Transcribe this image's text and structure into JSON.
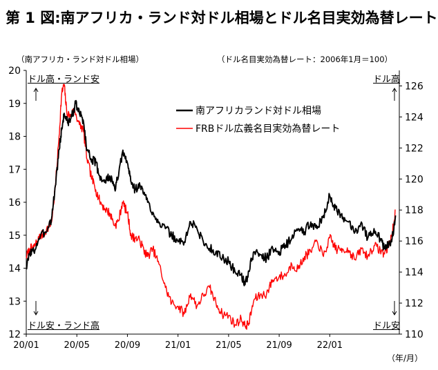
{
  "title": "第 1 図:南アフリカ・ランド対ドル相場とドル名目実効為替レート",
  "left_axis_title": "（南アフリカ・ランド対ドル相場）",
  "right_axis_title": "（ドル名目実効為替レート：2006年1月＝100）",
  "corner_top_left": "ドル高・ランド安",
  "corner_top_right": "ドル高",
  "corner_bottom_left": "ドル安・ランド高",
  "corner_bottom_right": "ドル安",
  "x_unit": "（年/月）",
  "colors": {
    "zar": "#000000",
    "usd": "#ff0000"
  },
  "chart_data": {
    "type": "line",
    "x_tick_labels": [
      "20/01",
      "20/05",
      "20/09",
      "21/01",
      "21/05",
      "21/09",
      "22/01"
    ],
    "x_ticks_month_index": [
      0,
      4,
      8,
      12,
      16,
      20,
      24
    ],
    "x_range_months": [
      0,
      29.5
    ],
    "y_left": {
      "range": [
        12,
        20
      ],
      "ticks": [
        12,
        13,
        14,
        15,
        16,
        17,
        18,
        19,
        20
      ]
    },
    "y_right": {
      "range": [
        110,
        127
      ],
      "ticks": [
        110,
        112,
        114,
        116,
        118,
        120,
        122,
        124,
        126
      ]
    },
    "grid": false,
    "legend_position": "upper-center",
    "series": [
      {
        "name": "南アフリカランド対ドル相場",
        "axis": "left",
        "x_month": [
          0,
          0.3,
          0.6,
          1,
          1.5,
          2,
          2.3,
          2.6,
          2.8,
          3.0,
          3.3,
          3.6,
          3.9,
          4.2,
          4.5,
          4.8,
          5.2,
          5.5,
          5.8,
          6.2,
          6.6,
          7,
          7.3,
          7.6,
          8,
          8.3,
          8.6,
          9,
          9.3,
          9.6,
          10,
          10.5,
          11,
          11.5,
          12,
          12.5,
          13,
          13.5,
          14,
          14.5,
          15,
          15.5,
          16,
          16.5,
          17,
          17.3,
          17.6,
          18,
          18.5,
          19,
          19.5,
          20,
          20.5,
          21,
          21.5,
          22,
          22.5,
          23,
          23.5,
          24,
          24.3,
          24.6,
          25,
          25.5,
          26,
          26.5,
          27,
          27.5,
          28,
          28.3,
          28.6,
          28.9,
          29.2
        ],
        "values": [
          14.0,
          14.5,
          14.5,
          14.9,
          15.1,
          15.5,
          16.5,
          17.6,
          18.2,
          18.7,
          18.4,
          18.6,
          19.0,
          18.7,
          18.5,
          17.6,
          17.3,
          17.2,
          16.8,
          16.6,
          16.8,
          16.4,
          16.8,
          17.5,
          17.2,
          16.6,
          16.4,
          16.5,
          16.3,
          16.0,
          15.7,
          15.4,
          15.2,
          15.0,
          14.8,
          14.8,
          15.4,
          15.2,
          14.8,
          14.6,
          14.5,
          14.3,
          14.2,
          13.9,
          13.8,
          13.5,
          13.9,
          14.5,
          14.4,
          14.3,
          14.6,
          14.5,
          14.7,
          14.9,
          15.2,
          15.1,
          15.4,
          15.2,
          15.6,
          16.2,
          15.9,
          15.7,
          15.5,
          15.4,
          15.1,
          15.4,
          14.9,
          15.2,
          14.9,
          14.6,
          14.7,
          14.8,
          15.6
        ]
      },
      {
        "name": "FRBドル広義名目実効為替レート",
        "axis": "right",
        "x_month": [
          0,
          0.3,
          0.6,
          1,
          1.5,
          2,
          2.3,
          2.6,
          2.8,
          3.0,
          3.2,
          3.5,
          3.8,
          4.2,
          4.5,
          4.8,
          5.2,
          5.5,
          5.8,
          6.2,
          6.6,
          7,
          7.3,
          7.6,
          8,
          8.3,
          8.6,
          9,
          9.3,
          9.6,
          10,
          10.5,
          11,
          11.5,
          12,
          12.5,
          13,
          13.5,
          14,
          14.5,
          15,
          15.5,
          16,
          16.5,
          17,
          17.3,
          17.6,
          18,
          18.5,
          19,
          19.5,
          20,
          20.5,
          21,
          21.5,
          22,
          22.5,
          23,
          23.5,
          24,
          24.3,
          24.6,
          25,
          25.5,
          26,
          26.5,
          27,
          27.5,
          28,
          28.3,
          28.6,
          28.9,
          29.2
        ],
        "values": [
          115.0,
          115.5,
          115.6,
          116.2,
          116.6,
          117.2,
          119.5,
          122.8,
          125.5,
          126.1,
          124.3,
          124.0,
          124.5,
          123.5,
          123.2,
          121.3,
          120.0,
          119.3,
          118.6,
          118.1,
          117.8,
          117.0,
          117.3,
          118.5,
          117.8,
          116.3,
          116.2,
          116.0,
          115.4,
          115.0,
          115.5,
          114.5,
          113.0,
          112.0,
          111.8,
          111.3,
          112.6,
          111.8,
          112.5,
          113.0,
          112.0,
          111.3,
          111.2,
          110.6,
          111.0,
          110.5,
          110.7,
          112.2,
          112.5,
          112.6,
          113.5,
          113.7,
          113.8,
          114.5,
          114.2,
          115.0,
          115.3,
          116.0,
          115.0,
          116.2,
          115.8,
          115.4,
          115.5,
          115.4,
          114.8,
          115.5,
          115.0,
          115.7,
          115.4,
          115.2,
          115.6,
          116.3,
          118.0
        ]
      }
    ]
  }
}
